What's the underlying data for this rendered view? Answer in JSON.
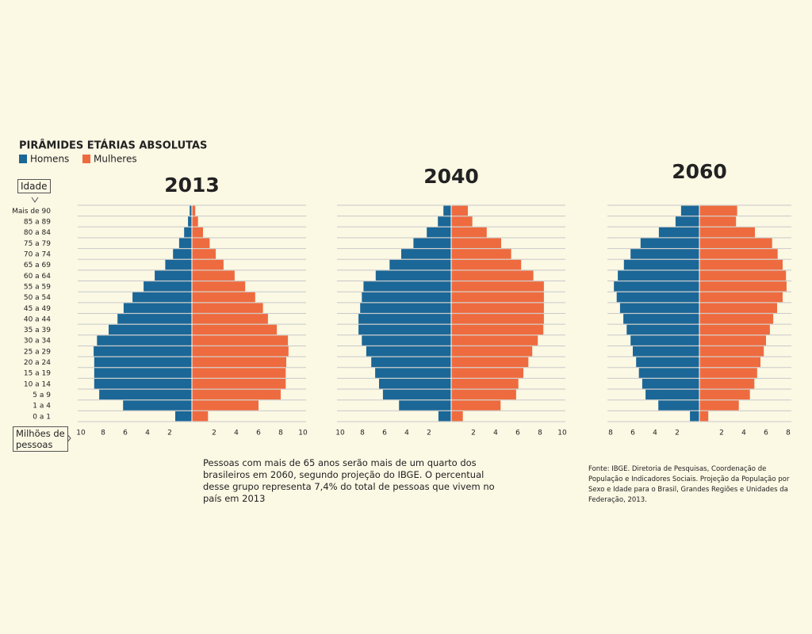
{
  "title": "PIRÂMIDES ETÁRIAS ABSOLUTAS",
  "age_label": "Idade",
  "unit_label": "Milhões de pessoas",
  "caption": "Pessoas com mais de 65 anos serão mais de um quarto dos brasileiros em 2060, segundo projeção do IBGE. O percentual desse grupo representa 7,4% do total de pessoas que vivem no país em 2013",
  "source": "Fonte: IBGE. Diretoria de Pesquisas, Coordenação de População e Indicadores Sociais. Projeção da População por Sexo e Idade para o Brasil, Grandes Regiões e Unidades da Federação, 2013.",
  "chart_data": [
    {
      "type": "pyramid",
      "title": "2013",
      "categories": [
        "Mais de 90",
        "85 a 89",
        "80 a 84",
        "75 a 79",
        "70 a 74",
        "65 a 69",
        "60 a 64",
        "55 a 59",
        "50 a 54",
        "45 a 49",
        "40 a 44",
        "35 a 39",
        "30 a 34",
        "25 a 29",
        "20 a 24",
        "15 a 19",
        "10 a 14",
        "5 a 9",
        "1 a 4",
        "0 a 1"
      ],
      "series": [
        {
          "name": "Homens",
          "color": "#1b6797",
          "values": [
            0.2,
            0.35,
            0.7,
            1.15,
            1.7,
            2.4,
            3.35,
            4.35,
            5.35,
            6.15,
            6.7,
            7.5,
            8.55,
            8.85,
            8.8,
            8.8,
            8.8,
            8.35,
            6.2,
            1.5
          ]
        },
        {
          "name": "Mulheres",
          "color": "#ee6b3f",
          "values": [
            0.3,
            0.55,
            1.0,
            1.6,
            2.15,
            2.85,
            3.85,
            4.8,
            5.7,
            6.4,
            6.85,
            7.65,
            8.65,
            8.7,
            8.5,
            8.45,
            8.45,
            8.0,
            6.0,
            1.45
          ]
        }
      ],
      "xlim": [
        0,
        10
      ],
      "xticks": [
        2,
        4,
        6,
        8,
        10
      ]
    },
    {
      "type": "pyramid",
      "title": "2040",
      "series": [
        {
          "name": "Homens",
          "color": "#1b6797",
          "values": [
            0.7,
            1.2,
            2.2,
            3.4,
            4.5,
            5.55,
            6.8,
            7.9,
            8.05,
            8.2,
            8.35,
            8.35,
            8.05,
            7.65,
            7.2,
            6.85,
            6.5,
            6.15,
            4.7,
            1.15
          ]
        },
        {
          "name": "Mulheres",
          "color": "#ee6b3f",
          "values": [
            1.5,
            1.9,
            3.2,
            4.5,
            5.4,
            6.3,
            7.4,
            8.35,
            8.35,
            8.35,
            8.35,
            8.3,
            7.8,
            7.3,
            6.95,
            6.5,
            6.05,
            5.85,
            4.45,
            1.05
          ]
        }
      ],
      "xlim": [
        0,
        10
      ],
      "xticks": [
        2,
        4,
        6,
        8,
        10
      ]
    },
    {
      "type": "pyramid",
      "title": "2060",
      "series": [
        {
          "name": "Homens",
          "color": "#1b6797",
          "values": [
            1.65,
            2.15,
            3.65,
            5.3,
            6.2,
            6.8,
            7.35,
            7.7,
            7.45,
            7.15,
            6.85,
            6.55,
            6.2,
            6.0,
            5.7,
            5.45,
            5.15,
            4.85,
            3.7,
            0.85
          ]
        },
        {
          "name": "Mulheres",
          "color": "#ee6b3f",
          "values": [
            3.4,
            3.3,
            5.0,
            6.55,
            7.05,
            7.5,
            7.8,
            7.85,
            7.5,
            7.0,
            6.65,
            6.35,
            6.0,
            5.8,
            5.5,
            5.2,
            4.95,
            4.55,
            3.55,
            0.8
          ]
        }
      ],
      "xlim": [
        0,
        8
      ],
      "xticks": [
        2,
        4,
        6,
        8
      ]
    }
  ]
}
